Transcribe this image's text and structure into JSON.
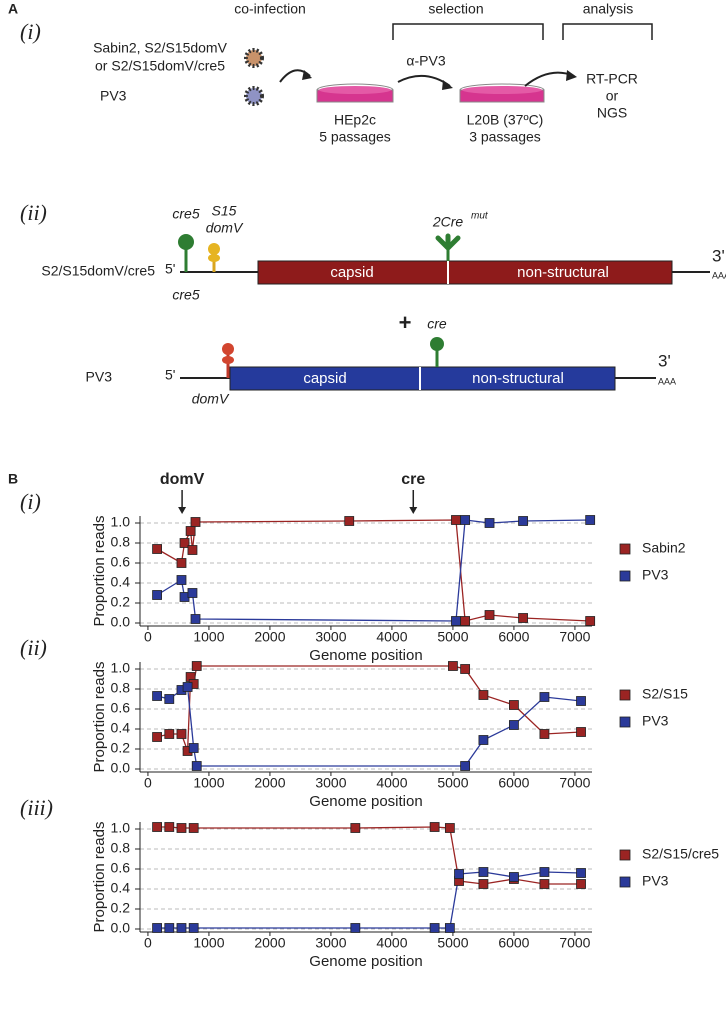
{
  "panel_a": {
    "label": "A",
    "step_label": "(i)",
    "steps": [
      "co-infection",
      "selection",
      "analysis"
    ],
    "viruses": [
      "Sabin2, S2/S15domV",
      "or S2/S15domV/cre5",
      "PV3"
    ],
    "antibody": "α-PV3",
    "cell1": [
      "HEp2c",
      "5 passages"
    ],
    "cell2": [
      "L20B (37ºC)",
      "3 passages"
    ],
    "readout": [
      "RT-PCR",
      "or",
      "NGS"
    ],
    "genome_label": "(ii)",
    "genome1": {
      "name": "S2/S15domV/cre5",
      "five": "5'",
      "three": "3'",
      "polya": "AAA",
      "capsid": "capsid",
      "ns": "non-structural",
      "cre5_top": "cre5",
      "cre5_bottom": "cre5",
      "s15": "S15",
      "domv": "domV",
      "cre_mut": "2Cre",
      "cre_mut_sup": "mut"
    },
    "plus": "+",
    "genome2": {
      "name": "PV3",
      "five": "5'",
      "three": "3'",
      "polya": "AAA",
      "capsid": "capsid",
      "ns": "non-structural",
      "cre": "cre",
      "domv": "domV"
    }
  },
  "panel_b": {
    "label": "B"
  },
  "chart_data": [
    {
      "type": "line",
      "label": "(i)",
      "ylabel": "Proportion reads",
      "xlabel": "Genome position",
      "xlim": [
        -130,
        7280
      ],
      "ylim": [
        -0.03,
        1.07
      ],
      "xticks": [
        0,
        1000,
        2000,
        3000,
        4000,
        5000,
        6000,
        7000
      ],
      "yticks": [
        {
          "value": 0,
          "label": "0.0"
        },
        0.2,
        0.4,
        0.6,
        0.8,
        {
          "value": 1,
          "label": "1.0"
        }
      ],
      "grid": true,
      "legend": "right",
      "annotations": [
        {
          "text": "domV",
          "x": 560
        },
        {
          "text": "cre",
          "x": 4350
        }
      ],
      "series": [
        {
          "name": "Sabin2",
          "color": "#9b2423",
          "x": [
            150,
            550,
            600,
            700,
            730,
            780,
            3300,
            5050,
            5200,
            5600,
            6150,
            7250
          ],
          "values": [
            0.74,
            0.6,
            0.8,
            0.92,
            0.73,
            1.01,
            1.02,
            1.03,
            0.02,
            0.08,
            0.05,
            0.02
          ]
        },
        {
          "name": "PV3",
          "color": "#2b3a9a",
          "x": [
            150,
            550,
            600,
            730,
            780,
            5050,
            5200,
            5600,
            6150,
            7250
          ],
          "values": [
            0.28,
            0.43,
            0.26,
            0.3,
            0.04,
            0.02,
            1.03,
            1.0,
            1.02,
            1.03
          ]
        }
      ]
    },
    {
      "type": "line",
      "label": "(ii)",
      "ylabel": "Proportion reads",
      "xlabel": "Genome position",
      "xlim": [
        -130,
        7280
      ],
      "ylim": [
        -0.03,
        1.07
      ],
      "xticks": [
        0,
        1000,
        2000,
        3000,
        4000,
        5000,
        6000,
        7000
      ],
      "yticks": [
        {
          "value": 0,
          "label": "0.0"
        },
        0.2,
        0.4,
        0.6,
        0.8,
        {
          "value": 1,
          "label": "1.0"
        }
      ],
      "grid": true,
      "legend": "right",
      "series": [
        {
          "name": "S2/S15",
          "color": "#9b2423",
          "x": [
            150,
            350,
            550,
            650,
            700,
            750,
            800,
            5000,
            5200,
            5500,
            6000,
            6500,
            7100
          ],
          "values": [
            0.32,
            0.35,
            0.35,
            0.18,
            0.92,
            0.85,
            1.03,
            1.03,
            1.0,
            0.74,
            0.64,
            0.35,
            0.37
          ]
        },
        {
          "name": "PV3",
          "color": "#2b3a9a",
          "x": [
            150,
            350,
            550,
            650,
            750,
            800,
            5200,
            5500,
            6000,
            6500,
            7100
          ],
          "values": [
            0.73,
            0.7,
            0.79,
            0.82,
            0.21,
            0.03,
            0.03,
            0.29,
            0.44,
            0.72,
            0.68
          ]
        }
      ]
    },
    {
      "type": "line",
      "label": "(iii)",
      "ylabel": "Proportion reads",
      "xlabel": "Genome position",
      "xlim": [
        -130,
        7280
      ],
      "ylim": [
        -0.03,
        1.07
      ],
      "xticks": [
        0,
        1000,
        2000,
        3000,
        4000,
        5000,
        6000,
        7000
      ],
      "yticks": [
        {
          "value": 0,
          "label": "0.0"
        },
        0.2,
        0.4,
        0.6,
        0.8,
        {
          "value": 1,
          "label": "1.0"
        }
      ],
      "grid": true,
      "legend": "right",
      "series": [
        {
          "name": "S2/S15/cre5",
          "color": "#9b2423",
          "x": [
            150,
            350,
            550,
            750,
            3400,
            4700,
            4950,
            5100,
            5500,
            6000,
            6500,
            7100
          ],
          "values": [
            1.02,
            1.02,
            1.01,
            1.01,
            1.01,
            1.02,
            1.01,
            0.48,
            0.45,
            0.5,
            0.45,
            0.45
          ]
        },
        {
          "name": "PV3",
          "color": "#2b3a9a",
          "x": [
            150,
            350,
            550,
            750,
            3400,
            4700,
            4950,
            5100,
            5500,
            6000,
            6500,
            7100
          ],
          "values": [
            0.01,
            0.01,
            0.01,
            0.01,
            0.01,
            0.01,
            0.01,
            0.55,
            0.57,
            0.52,
            0.57,
            0.56
          ]
        }
      ]
    }
  ]
}
